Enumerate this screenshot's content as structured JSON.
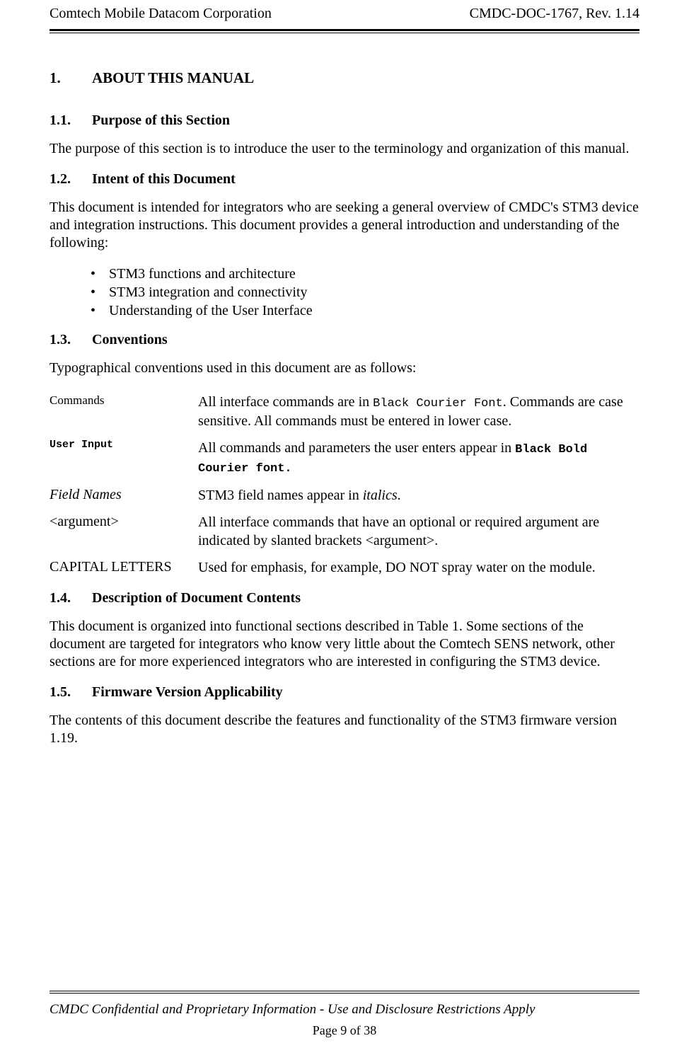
{
  "header": {
    "left": "Comtech Mobile Datacom Corporation",
    "right": "CMDC-DOC-1767, Rev. 1.14"
  },
  "sections": {
    "s1": {
      "num": "1.",
      "title": "ABOUT THIS MANUAL"
    },
    "s11": {
      "num": "1.1.",
      "title": "Purpose of this Section"
    },
    "s11_body": "The purpose of this section is to introduce the user to the terminology and organization of this manual.",
    "s12": {
      "num": "1.2.",
      "title": "Intent of this Document"
    },
    "s12_body": "This document is intended for integrators who are seeking a general overview of CMDC's STM3 device and integration instructions. This document provides a general introduction and understanding of the following:",
    "s12_bullets": [
      "STM3 functions and architecture",
      "STM3 integration and connectivity",
      "Understanding of the User Interface"
    ],
    "s13": {
      "num": "1.3.",
      "title": "Conventions"
    },
    "s13_body": "Typographical conventions used in this document are as follows:",
    "conventions": {
      "commands": {
        "label": "Commands",
        "desc_pre": "All interface commands are in ",
        "desc_courier": "Black Courier Font",
        "desc_post": ". Commands are case sensitive.  All commands must be entered in lower case."
      },
      "user_input": {
        "label": "User Input",
        "desc_pre": "All commands and parameters the user enters appear in ",
        "desc_bold": "Black Bold Courier font."
      },
      "field_names": {
        "label": "Field Names",
        "desc_pre": "STM3 field names appear in ",
        "desc_italic": "italics",
        "desc_post": "."
      },
      "argument": {
        "label": "<argument>",
        "desc": "All interface commands that have an optional or required argument are indicated by slanted brackets <argument>."
      },
      "capitals": {
        "label": "CAPITAL LETTERS",
        "desc": "Used for emphasis, for example, DO NOT spray water on the module."
      }
    },
    "s14": {
      "num": "1.4.",
      "title": "Description of Document Contents"
    },
    "s14_body": "This document is organized into functional sections described in Table 1. Some sections of the document are targeted for integrators who know very little about the Comtech SENS network, other sections are for more experienced integrators who are interested in configuring the STM3 device.",
    "s15": {
      "num": "1.5.",
      "title": "Firmware Version Applicability"
    },
    "s15_body": "The contents of this document describe the features and functionality of the STM3 firmware version 1.19."
  },
  "footer": {
    "confidential": "CMDC Confidential and Proprietary Information - Use and Disclosure Restrictions Apply",
    "page": "Page 9 of 38"
  }
}
